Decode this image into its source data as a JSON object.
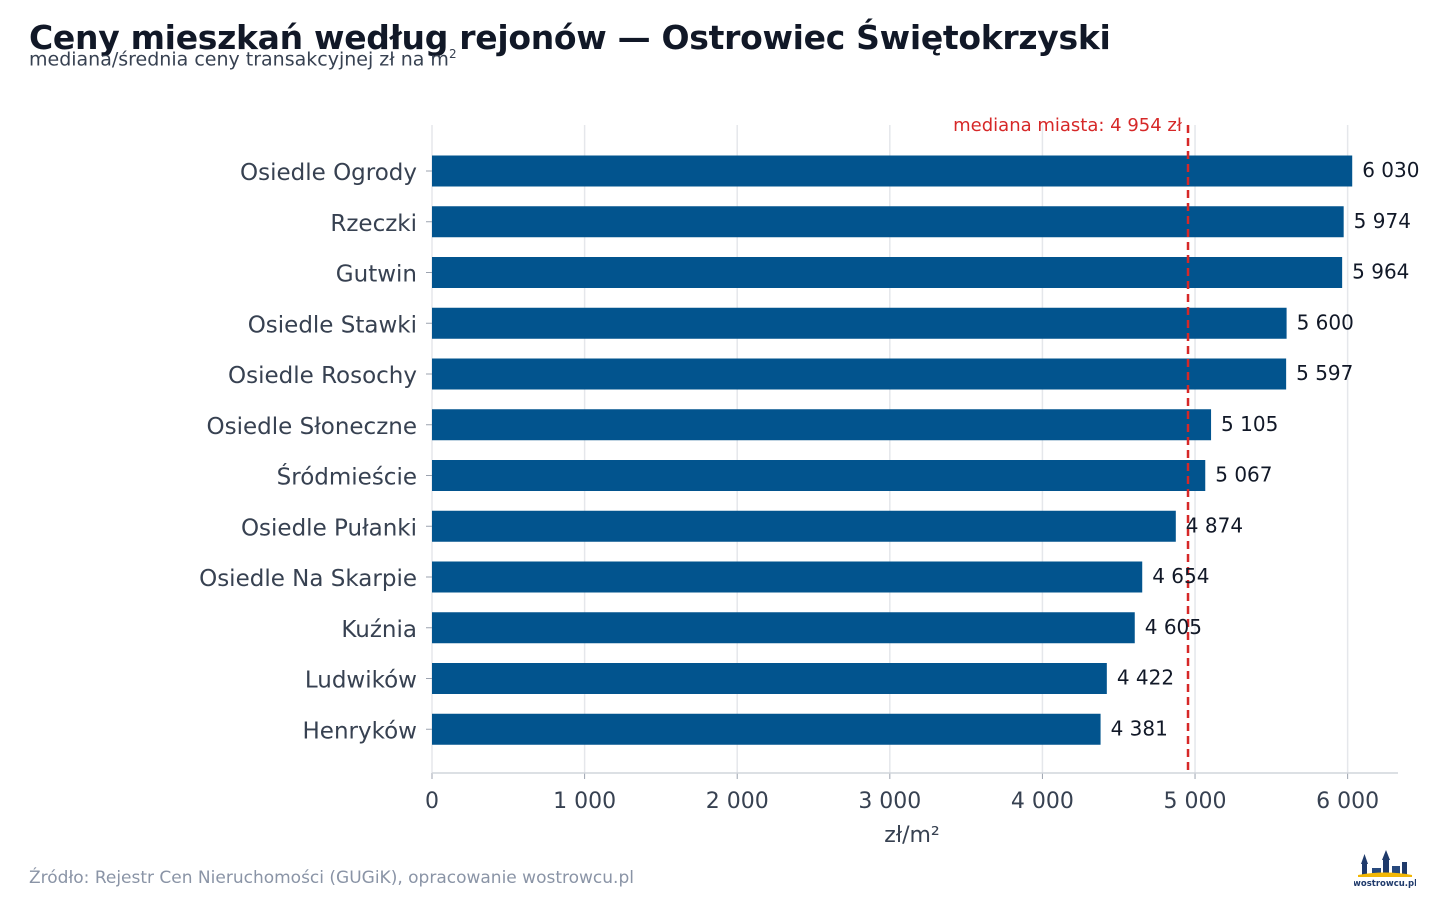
{
  "header": {
    "title": "Ceny mieszkań według rejonów — Ostrowiec Świętokrzyski",
    "subtitle": "mediana/średnia ceny transakcyjnej zł na m",
    "subtitle_sup": "2"
  },
  "footer": {
    "source": "Źródło: Rejestr Cen Nieruchomości (GUGiK), opracowanie wostrowcu.pl",
    "logo_text": "wostrowcu.pl"
  },
  "colors": {
    "bar": "#02548e",
    "median_line": "#d62828",
    "grid": "#e5e7eb",
    "axis_text": "#374151"
  },
  "chart_data": {
    "type": "bar",
    "orientation": "horizontal",
    "categories": [
      "Osiedle Ogrody",
      "Rzeczki",
      "Gutwin",
      "Osiedle Stawki",
      "Osiedle Rosochy",
      "Osiedle Słoneczne",
      "Śródmieście",
      "Osiedle Pułanki",
      "Osiedle Na Skarpie",
      "Kuźnia",
      "Ludwików",
      "Henryków"
    ],
    "values": [
      6030,
      5974,
      5964,
      5600,
      5597,
      5105,
      5067,
      4874,
      4654,
      4605,
      4422,
      4381
    ],
    "value_labels": [
      "6 030",
      "5 974",
      "5 964",
      "5 600",
      "5 597",
      "5 105",
      "5 067",
      "4 874",
      "4 654",
      "4 605",
      "4 422",
      "4 381"
    ],
    "xlabel": "zł/m²",
    "xlim": [
      0,
      6330
    ],
    "xticks": [
      0,
      1000,
      2000,
      3000,
      4000,
      5000,
      6000
    ],
    "xtick_labels": [
      "0",
      "1 000",
      "2 000",
      "3 000",
      "4 000",
      "5 000",
      "6 000"
    ],
    "grid": "vertical",
    "reference_line": {
      "value": 4954,
      "label": "mediana miasta: 4 954 zł",
      "style": "dashed"
    }
  }
}
